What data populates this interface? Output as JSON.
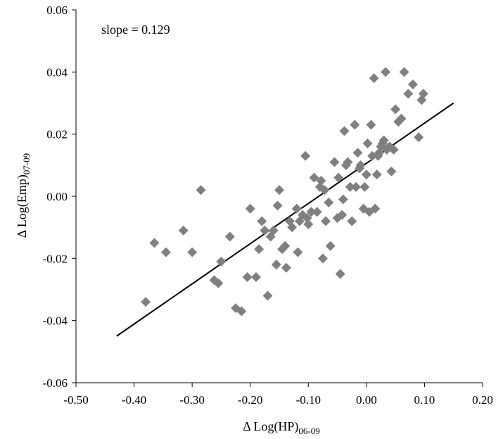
{
  "chart_data": {
    "type": "scatter",
    "xlabel": "Δ Log(HP)",
    "xlabel_sub": "06-09",
    "ylabel": "Δ Log(Emp)",
    "ylabel_sub": "07-09",
    "xlim": [
      -0.5,
      0.2
    ],
    "ylim": [
      -0.06,
      0.06
    ],
    "xticks": [
      "-0.50",
      "-0.40",
      "-0.30",
      "-0.20",
      "-0.10",
      "0.00",
      "0.10",
      "0.20"
    ],
    "yticks": [
      "-0.06",
      "-0.04",
      "-0.02",
      "0.00",
      "0.02",
      "0.04",
      "0.06"
    ],
    "xtick_values": [
      -0.5,
      -0.4,
      -0.3,
      -0.2,
      -0.1,
      0.0,
      0.1,
      0.2
    ],
    "ytick_values": [
      -0.06,
      -0.04,
      -0.02,
      0.0,
      0.02,
      0.04,
      0.06
    ],
    "annotation": "slope = 0.129",
    "grid": false,
    "marker_color": "#808080",
    "line_color": "#000000",
    "fit_line": {
      "x": [
        -0.43,
        0.15
      ],
      "y": [
        -0.045,
        0.03
      ]
    },
    "points": [
      [
        -0.38,
        -0.034
      ],
      [
        -0.365,
        -0.015
      ],
      [
        -0.345,
        -0.018
      ],
      [
        -0.315,
        -0.011
      ],
      [
        -0.3,
        -0.018
      ],
      [
        -0.285,
        0.002
      ],
      [
        -0.262,
        -0.027
      ],
      [
        -0.255,
        -0.028
      ],
      [
        -0.25,
        -0.021
      ],
      [
        -0.235,
        -0.013
      ],
      [
        -0.225,
        -0.036
      ],
      [
        -0.215,
        -0.037
      ],
      [
        -0.205,
        -0.026
      ],
      [
        -0.2,
        -0.004
      ],
      [
        -0.19,
        -0.026
      ],
      [
        -0.185,
        -0.017
      ],
      [
        -0.18,
        -0.008
      ],
      [
        -0.175,
        -0.011
      ],
      [
        -0.17,
        -0.032
      ],
      [
        -0.165,
        -0.013
      ],
      [
        -0.16,
        -0.011
      ],
      [
        -0.155,
        -0.022
      ],
      [
        -0.153,
        -0.003
      ],
      [
        -0.15,
        0.002
      ],
      [
        -0.145,
        -0.017
      ],
      [
        -0.14,
        -0.016
      ],
      [
        -0.138,
        -0.023
      ],
      [
        -0.132,
        -0.008
      ],
      [
        -0.128,
        -0.01
      ],
      [
        -0.12,
        -0.004
      ],
      [
        -0.118,
        -0.018
      ],
      [
        -0.115,
        -0.008
      ],
      [
        -0.11,
        -0.006
      ],
      [
        -0.105,
        0.013
      ],
      [
        -0.102,
        -0.007
      ],
      [
        -0.1,
        -0.009
      ],
      [
        -0.095,
        -0.005
      ],
      [
        -0.09,
        0.006
      ],
      [
        -0.085,
        -0.005
      ],
      [
        -0.08,
        0.003
      ],
      [
        -0.078,
        0.005
      ],
      [
        -0.075,
        -0.02
      ],
      [
        -0.072,
        0.002
      ],
      [
        -0.07,
        -0.008
      ],
      [
        -0.065,
        -0.002
      ],
      [
        -0.062,
        -0.016
      ],
      [
        -0.055,
        0.011
      ],
      [
        -0.05,
        -0.007
      ],
      [
        -0.048,
        0.006
      ],
      [
        -0.045,
        -0.025
      ],
      [
        -0.042,
        -0.006
      ],
      [
        -0.04,
        -0.001
      ],
      [
        -0.038,
        0.021
      ],
      [
        -0.035,
        0.01
      ],
      [
        -0.032,
        0.011
      ],
      [
        -0.028,
        0.003
      ],
      [
        -0.025,
        -0.008
      ],
      [
        -0.02,
        0.023
      ],
      [
        -0.018,
        0.003
      ],
      [
        -0.015,
        0.014
      ],
      [
        -0.012,
        0.009
      ],
      [
        -0.01,
        0.01
      ],
      [
        -0.005,
        -0.004
      ],
      [
        -0.003,
        0.003
      ],
      [
        0.0,
        0.007
      ],
      [
        0.002,
        0.017
      ],
      [
        0.005,
        -0.005
      ],
      [
        0.008,
        0.023
      ],
      [
        0.01,
        0.013
      ],
      [
        0.013,
        0.038
      ],
      [
        0.015,
        -0.004
      ],
      [
        0.018,
        0.007
      ],
      [
        0.02,
        0.013
      ],
      [
        0.022,
        0.014
      ],
      [
        0.025,
        0.016
      ],
      [
        0.028,
        0.017
      ],
      [
        0.03,
        0.018
      ],
      [
        0.033,
        0.04
      ],
      [
        0.035,
        0.015
      ],
      [
        0.04,
        0.016
      ],
      [
        0.043,
        0.008
      ],
      [
        0.047,
        0.015
      ],
      [
        0.05,
        0.028
      ],
      [
        0.055,
        0.024
      ],
      [
        0.06,
        0.025
      ],
      [
        0.065,
        0.04
      ],
      [
        0.072,
        0.033
      ],
      [
        0.08,
        0.036
      ],
      [
        0.09,
        0.019
      ],
      [
        0.095,
        0.031
      ],
      [
        0.098,
        0.033
      ]
    ]
  }
}
